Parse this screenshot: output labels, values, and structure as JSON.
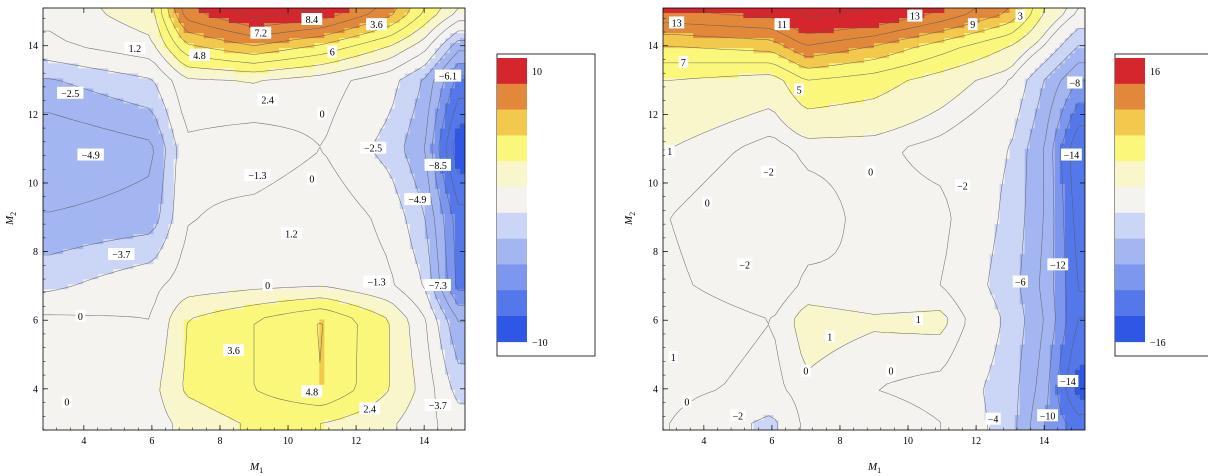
{
  "chart_data": [
    {
      "type": "heatmap",
      "subtype": "contour",
      "title": "",
      "xlabel": "M1",
      "ylabel": "M2",
      "xlim": [
        2.8,
        15.2
      ],
      "ylim": [
        2.8,
        15.1
      ],
      "xticks": [
        4,
        6,
        8,
        10,
        12,
        14
      ],
      "yticks": [
        4,
        6,
        8,
        10,
        12,
        14
      ],
      "grid_x": [
        3,
        6,
        7,
        9,
        11,
        13,
        14,
        15
      ],
      "grid_y": [
        3,
        4,
        6,
        7,
        9,
        11,
        13,
        14,
        15
      ],
      "z": [
        [
          0.3,
          0.6,
          1.6,
          2.6,
          2.4,
          1.4,
          0.4,
          -0.6
        ],
        [
          0.5,
          0.8,
          2.6,
          3.6,
          4.8,
          2.4,
          0.8,
          -1.8
        ],
        [
          0.3,
          0.0,
          2.4,
          3.6,
          4.9,
          2.4,
          0.2,
          -3.7
        ],
        [
          -1.6,
          -0.3,
          0.6,
          0.9,
          1.1,
          0.2,
          -1.3,
          -6.5
        ],
        [
          -3.6,
          -3.2,
          -0.1,
          0.4,
          1.0,
          -0.4,
          -2.4,
          -6.8
        ],
        [
          -4.9,
          -4.0,
          -0.3,
          -0.8,
          0.0,
          -1.8,
          -3.6,
          -9.5
        ],
        [
          -2.6,
          -1.4,
          1.0,
          1.3,
          0.6,
          -0.8,
          -2.6,
          -6.5
        ],
        [
          -0.3,
          0.9,
          4.6,
          6.0,
          4.6,
          2.4,
          0.6,
          -3.2
        ],
        [
          0.4,
          2.0,
          8.0,
          10.4,
          9.6,
          6.6,
          3.6,
          1.2
        ]
      ],
      "contour_levels": [
        -10,
        -8.5,
        -7.3,
        -6.1,
        -4.9,
        -3.7,
        -2.5,
        -1.3,
        0,
        1.2,
        2.4,
        3.6,
        4.8,
        6,
        7.2,
        8.4,
        9.6
      ],
      "contour_labels": [
        {
          "text": "8.4",
          "x": 10.7,
          "y": 14.75
        },
        {
          "text": "3.6",
          "x": 12.6,
          "y": 14.6
        },
        {
          "text": "1.2",
          "x": 5.5,
          "y": 13.9
        },
        {
          "text": "7.2",
          "x": 9.2,
          "y": 14.35
        },
        {
          "text": "6",
          "x": 11.3,
          "y": 13.8
        },
        {
          "text": "4.8",
          "x": 7.4,
          "y": 13.7
        },
        {
          "text": "−6.1",
          "x": 14.7,
          "y": 13.1
        },
        {
          "text": "−2.5",
          "x": 3.6,
          "y": 12.6
        },
        {
          "text": "2.4",
          "x": 9.4,
          "y": 12.4
        },
        {
          "text": "0",
          "x": 11.0,
          "y": 12.0
        },
        {
          "text": "−2.5",
          "x": 12.5,
          "y": 11.0
        },
        {
          "text": "−4.9",
          "x": 4.2,
          "y": 10.8
        },
        {
          "text": "−1.3",
          "x": 9.1,
          "y": 10.2
        },
        {
          "text": "0",
          "x": 10.7,
          "y": 10.1
        },
        {
          "text": "−8.5",
          "x": 14.4,
          "y": 10.5
        },
        {
          "text": "−4.9",
          "x": 13.8,
          "y": 9.5
        },
        {
          "text": "1.2",
          "x": 10.1,
          "y": 8.5
        },
        {
          "text": "−3.7",
          "x": 5.1,
          "y": 7.9
        },
        {
          "text": "0",
          "x": 9.4,
          "y": 7.0
        },
        {
          "text": "−1.3",
          "x": 12.6,
          "y": 7.1
        },
        {
          "text": "−7.3",
          "x": 14.4,
          "y": 7.0
        },
        {
          "text": "0",
          "x": 3.9,
          "y": 6.1
        },
        {
          "text": "3.6",
          "x": 8.4,
          "y": 5.1
        },
        {
          "text": "4.8",
          "x": 10.7,
          "y": 3.9
        },
        {
          "text": "2.4",
          "x": 12.4,
          "y": 3.4
        },
        {
          "text": "0",
          "x": 3.5,
          "y": 3.6
        },
        {
          "text": "−3.7",
          "x": 14.4,
          "y": 3.5
        }
      ],
      "legend": {
        "labels": [
          "10",
          "−10"
        ],
        "placement": "right"
      },
      "grid": false
    },
    {
      "type": "heatmap",
      "subtype": "contour",
      "title": "",
      "xlabel": "M1",
      "ylabel": "M2",
      "xlim": [
        2.8,
        15.2
      ],
      "ylim": [
        2.8,
        15.1
      ],
      "xticks": [
        4,
        6,
        8,
        10,
        12,
        14
      ],
      "yticks": [
        4,
        6,
        8,
        10,
        12,
        14
      ],
      "grid_x": [
        3,
        6,
        7,
        9,
        11,
        13,
        14,
        15
      ],
      "grid_y": [
        3,
        4,
        6,
        7,
        9,
        11,
        13,
        14,
        15
      ],
      "z": [
        [
          0.0,
          -2.5,
          0.5,
          0.8,
          0.0,
          -3.0,
          -8.0,
          -11.0
        ],
        [
          0.5,
          -0.5,
          0.8,
          0.0,
          -0.5,
          -3.0,
          -7.0,
          -15.0
        ],
        [
          1.0,
          0.0,
          1.6,
          1.2,
          1.4,
          -2.5,
          -6.0,
          -12.0
        ],
        [
          0.3,
          -1.0,
          0.3,
          0.0,
          0.0,
          -3.0,
          -6.5,
          -12.0
        ],
        [
          0.0,
          -1.5,
          -0.7,
          0.5,
          0.4,
          -2.5,
          -6.0,
          -13.0
        ],
        [
          1.0,
          -0.5,
          0.3,
          0.3,
          -0.5,
          -2.0,
          -6.0,
          -14.0
        ],
        [
          3.0,
          2.0,
          5.0,
          4.0,
          2.0,
          0.0,
          -4.0,
          -8.0
        ],
        [
          7.0,
          8.0,
          11.0,
          9.0,
          6.0,
          3.0,
          0.0,
          -4.0
        ],
        [
          13.0,
          14.0,
          17.0,
          16.0,
          13.0,
          9.0,
          3.0,
          0.0
        ]
      ],
      "contour_levels": [
        -16,
        -14,
        -12,
        -10,
        -8,
        -6,
        -4,
        -2,
        0,
        1,
        3,
        5,
        7,
        9,
        11,
        13,
        16
      ],
      "contour_labels": [
        {
          "text": "13",
          "x": 3.2,
          "y": 14.65
        },
        {
          "text": "11",
          "x": 6.3,
          "y": 14.6
        },
        {
          "text": "13",
          "x": 10.2,
          "y": 14.85
        },
        {
          "text": "9",
          "x": 11.9,
          "y": 14.6
        },
        {
          "text": "3",
          "x": 13.3,
          "y": 14.85
        },
        {
          "text": "7",
          "x": 3.4,
          "y": 13.5
        },
        {
          "text": "−8",
          "x": 14.9,
          "y": 12.9
        },
        {
          "text": "5",
          "x": 6.8,
          "y": 12.7
        },
        {
          "text": "−14",
          "x": 14.8,
          "y": 10.8
        },
        {
          "text": "1",
          "x": 3.0,
          "y": 10.9
        },
        {
          "text": "−2",
          "x": 5.9,
          "y": 10.3
        },
        {
          "text": "0",
          "x": 8.9,
          "y": 10.3
        },
        {
          "text": "−2",
          "x": 11.6,
          "y": 9.9
        },
        {
          "text": "0",
          "x": 4.1,
          "y": 9.4
        },
        {
          "text": "−2",
          "x": 5.2,
          "y": 7.6
        },
        {
          "text": "−12",
          "x": 14.4,
          "y": 7.6
        },
        {
          "text": "−6",
          "x": 13.3,
          "y": 7.1
        },
        {
          "text": "1",
          "x": 10.3,
          "y": 6.0
        },
        {
          "text": "1",
          "x": 7.7,
          "y": 5.5
        },
        {
          "text": "1",
          "x": 3.1,
          "y": 4.9
        },
        {
          "text": "0",
          "x": 7.0,
          "y": 4.5
        },
        {
          "text": "0",
          "x": 9.5,
          "y": 4.5
        },
        {
          "text": "−14",
          "x": 14.7,
          "y": 4.2
        },
        {
          "text": "0",
          "x": 3.5,
          "y": 3.6
        },
        {
          "text": "−2",
          "x": 5.0,
          "y": 3.2
        },
        {
          "text": "−4",
          "x": 12.5,
          "y": 3.1
        },
        {
          "text": "−10",
          "x": 14.1,
          "y": 3.2
        }
      ],
      "legend": {
        "labels": [
          "16",
          "−16"
        ],
        "placement": "right"
      },
      "grid": false
    }
  ],
  "axis_text": {
    "m": "M",
    "one": "1",
    "two": "2"
  },
  "palette": [
    "#2f57e6",
    "#5478ea",
    "#7c97ed",
    "#a3b6f1",
    "#cbd5f6",
    "#f4f3ef",
    "#f9f6cc",
    "#fbf77a",
    "#f2c94d",
    "#e1883a",
    "#d4262c"
  ]
}
